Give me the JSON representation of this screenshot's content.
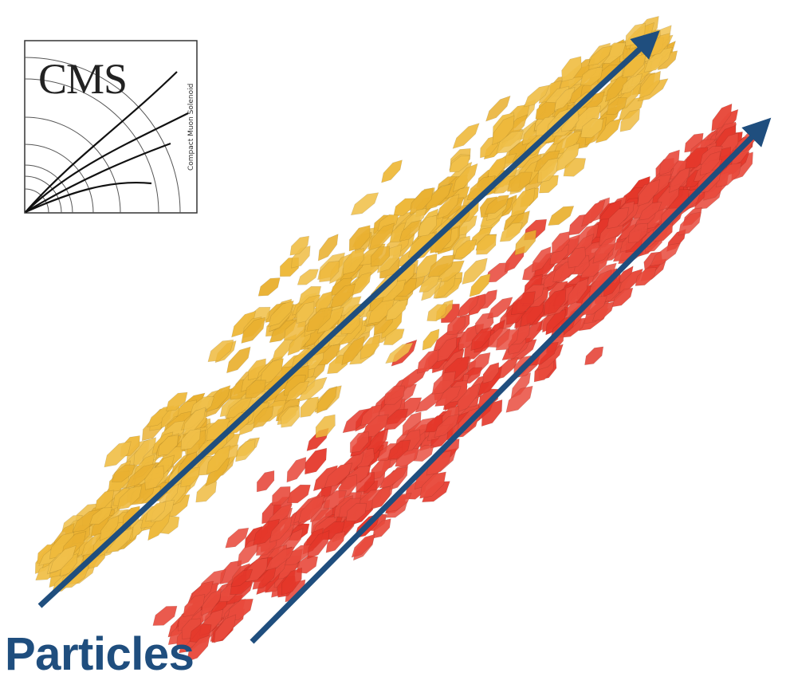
{
  "label": "Particles",
  "logo": {
    "text": "CMS",
    "subtitle": "Compact Muon Solenoid"
  },
  "colors": {
    "arrow": "#1f4e7e",
    "label": "#1f4e7e",
    "cluster_yellow": "#eeb93c",
    "cluster_red": "#e84a3c",
    "cluster_red_dark": "#e4372a",
    "logo_line": "#111111",
    "logo_frame": "#333333"
  },
  "clusters": [
    {
      "name": "yellow-shower",
      "color_key": "cluster_yellow"
    },
    {
      "name": "red-shower",
      "color_key": "cluster_red"
    }
  ],
  "arrows": [
    {
      "name": "yellow-particle-arrow",
      "color_key": "arrow"
    },
    {
      "name": "red-particle-arrow",
      "color_key": "arrow"
    }
  ]
}
